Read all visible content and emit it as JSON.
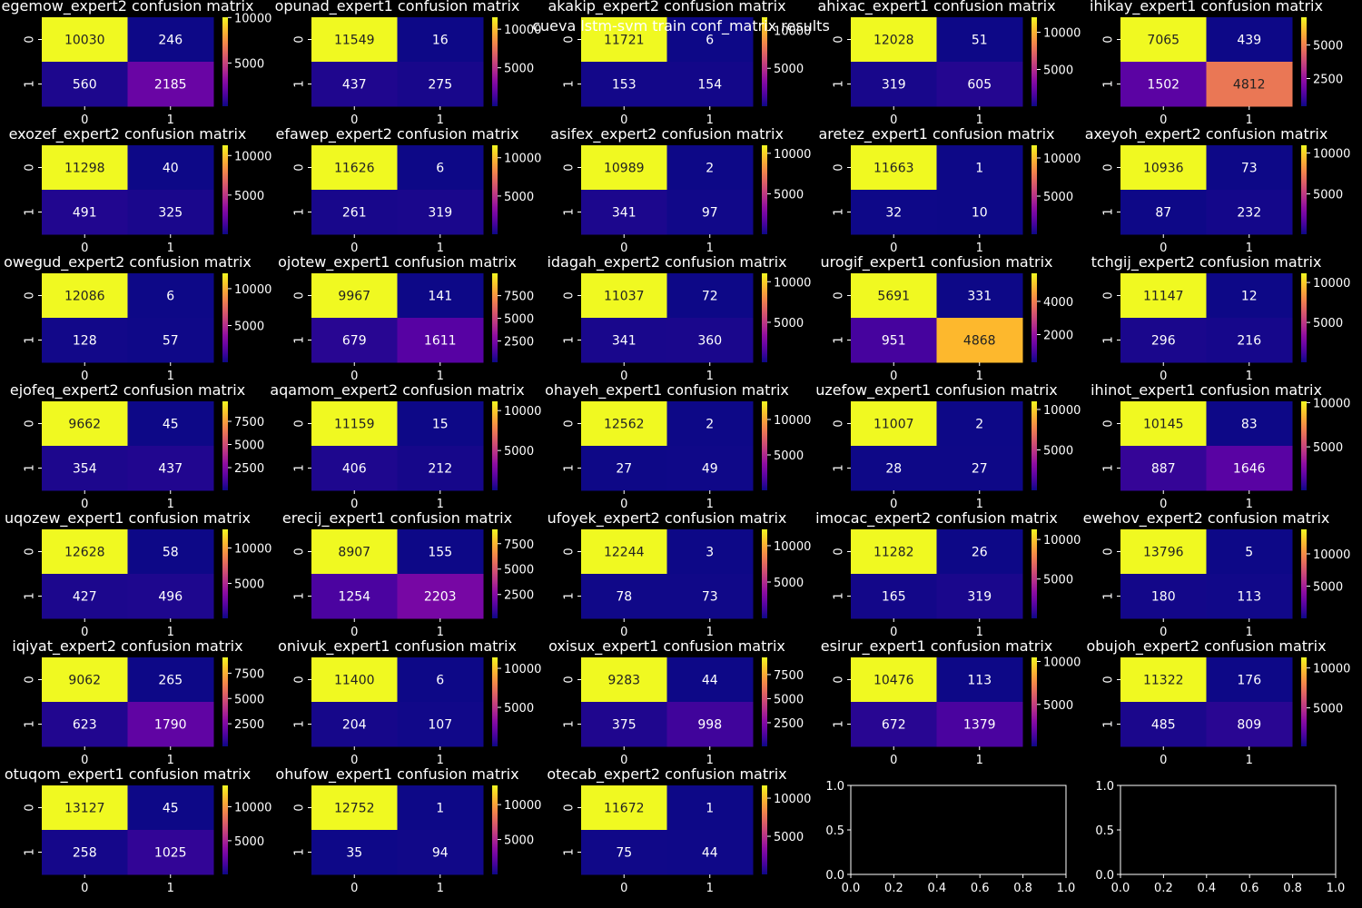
{
  "suptitle": "cueva lstm-svm train conf_matrix results",
  "chart_data": {
    "type": "heatmap",
    "colormap": "plasma",
    "xticks": [
      "0",
      "1"
    ],
    "yticks": [
      "0",
      "1"
    ],
    "panels": [
      {
        "title": "egemow_expert2 confusion matrix",
        "matrix": [
          [
            10030,
            246
          ],
          [
            560,
            2185
          ]
        ],
        "cbar_ticks": [
          5000,
          10000
        ]
      },
      {
        "title": "opunad_expert1 confusion matrix",
        "matrix": [
          [
            11549,
            16
          ],
          [
            437,
            275
          ]
        ],
        "cbar_ticks": [
          5000,
          10000
        ]
      },
      {
        "title": "akakip_expert2 confusion matrix",
        "matrix": [
          [
            11721,
            6
          ],
          [
            153,
            154
          ]
        ],
        "cbar_ticks": [
          5000,
          10000
        ]
      },
      {
        "title": "ahixac_expert1 confusion matrix",
        "matrix": [
          [
            12028,
            51
          ],
          [
            319,
            605
          ]
        ],
        "cbar_ticks": [
          5000,
          10000
        ]
      },
      {
        "title": "ihikay_expert1 confusion matrix",
        "matrix": [
          [
            7065,
            439
          ],
          [
            1502,
            4812
          ]
        ],
        "cbar_ticks": [
          2500,
          5000
        ]
      },
      {
        "title": "exozef_expert2 confusion matrix",
        "matrix": [
          [
            11298,
            40
          ],
          [
            491,
            325
          ]
        ],
        "cbar_ticks": [
          5000,
          10000
        ]
      },
      {
        "title": "efawep_expert2 confusion matrix",
        "matrix": [
          [
            11626,
            6
          ],
          [
            261,
            319
          ]
        ],
        "cbar_ticks": [
          5000,
          10000
        ]
      },
      {
        "title": "asifex_expert2 confusion matrix",
        "matrix": [
          [
            10989,
            2
          ],
          [
            341,
            97
          ]
        ],
        "cbar_ticks": [
          5000,
          10000
        ]
      },
      {
        "title": "aretez_expert1 confusion matrix",
        "matrix": [
          [
            11663,
            1
          ],
          [
            32,
            10
          ]
        ],
        "cbar_ticks": [
          5000,
          10000
        ]
      },
      {
        "title": "axeyoh_expert2 confusion matrix",
        "matrix": [
          [
            10936,
            73
          ],
          [
            87,
            232
          ]
        ],
        "cbar_ticks": [
          5000,
          10000
        ]
      },
      {
        "title": "owegud_expert2 confusion matrix",
        "matrix": [
          [
            12086,
            6
          ],
          [
            128,
            57
          ]
        ],
        "cbar_ticks": [
          5000,
          10000
        ]
      },
      {
        "title": "ojotew_expert1 confusion matrix",
        "matrix": [
          [
            9967,
            141
          ],
          [
            679,
            1611
          ]
        ],
        "cbar_ticks": [
          2500,
          5000,
          7500
        ]
      },
      {
        "title": "idagah_expert2 confusion matrix",
        "matrix": [
          [
            11037,
            72
          ],
          [
            341,
            360
          ]
        ],
        "cbar_ticks": [
          5000,
          10000
        ]
      },
      {
        "title": "urogif_expert1 confusion matrix",
        "matrix": [
          [
            5691,
            331
          ],
          [
            951,
            4868
          ]
        ],
        "cbar_ticks": [
          2000,
          4000
        ]
      },
      {
        "title": "tchgij_expert2 confusion matrix",
        "matrix": [
          [
            11147,
            12
          ],
          [
            296,
            216
          ]
        ],
        "cbar_ticks": [
          5000,
          10000
        ]
      },
      {
        "title": "ejofeq_expert2 confusion matrix",
        "matrix": [
          [
            9662,
            45
          ],
          [
            354,
            437
          ]
        ],
        "cbar_ticks": [
          2500,
          5000,
          7500
        ]
      },
      {
        "title": "aqamom_expert2 confusion matrix",
        "matrix": [
          [
            11159,
            15
          ],
          [
            406,
            212
          ]
        ],
        "cbar_ticks": [
          5000,
          10000
        ]
      },
      {
        "title": "ohayeh_expert1 confusion matrix",
        "matrix": [
          [
            12562,
            2
          ],
          [
            27,
            49
          ]
        ],
        "cbar_ticks": [
          5000,
          10000
        ]
      },
      {
        "title": "uzefow_expert1 confusion matrix",
        "matrix": [
          [
            11007,
            2
          ],
          [
            28,
            27
          ]
        ],
        "cbar_ticks": [
          5000,
          10000
        ]
      },
      {
        "title": "ihinot_expert1 confusion matrix",
        "matrix": [
          [
            10145,
            83
          ],
          [
            887,
            1646
          ]
        ],
        "cbar_ticks": [
          5000,
          10000
        ]
      },
      {
        "title": "uqozew_expert1 confusion matrix",
        "matrix": [
          [
            12628,
            58
          ],
          [
            427,
            496
          ]
        ],
        "cbar_ticks": [
          5000,
          10000
        ]
      },
      {
        "title": "erecij_expert1 confusion matrix",
        "matrix": [
          [
            8907,
            155
          ],
          [
            1254,
            2203
          ]
        ],
        "cbar_ticks": [
          2500,
          5000,
          7500
        ]
      },
      {
        "title": "ufoyek_expert2 confusion matrix",
        "matrix": [
          [
            12244,
            3
          ],
          [
            78,
            73
          ]
        ],
        "cbar_ticks": [
          5000,
          10000
        ]
      },
      {
        "title": "imocac_expert2 confusion matrix",
        "matrix": [
          [
            11282,
            26
          ],
          [
            165,
            319
          ]
        ],
        "cbar_ticks": [
          5000,
          10000
        ]
      },
      {
        "title": "ewehov_expert2 confusion matrix",
        "matrix": [
          [
            13796,
            5
          ],
          [
            180,
            113
          ]
        ],
        "cbar_ticks": [
          5000,
          10000
        ]
      },
      {
        "title": "iqiyat_expert2 confusion matrix",
        "matrix": [
          [
            9062,
            265
          ],
          [
            623,
            1790
          ]
        ],
        "cbar_ticks": [
          2500,
          5000,
          7500
        ]
      },
      {
        "title": "onivuk_expert1 confusion matrix",
        "matrix": [
          [
            11400,
            6
          ],
          [
            204,
            107
          ]
        ],
        "cbar_ticks": [
          5000,
          10000
        ]
      },
      {
        "title": "oxisux_expert1 confusion matrix",
        "matrix": [
          [
            9283,
            44
          ],
          [
            375,
            998
          ]
        ],
        "cbar_ticks": [
          2500,
          5000,
          7500
        ]
      },
      {
        "title": "esirur_expert1 confusion matrix",
        "matrix": [
          [
            10476,
            113
          ],
          [
            672,
            1379
          ]
        ],
        "cbar_ticks": [
          5000,
          10000
        ]
      },
      {
        "title": "obujoh_expert2 confusion matrix",
        "matrix": [
          [
            11322,
            176
          ],
          [
            485,
            809
          ]
        ],
        "cbar_ticks": [
          5000,
          10000
        ]
      },
      {
        "title": "otuqom_expert1 confusion matrix",
        "matrix": [
          [
            13127,
            45
          ],
          [
            258,
            1025
          ]
        ],
        "cbar_ticks": [
          5000,
          10000
        ]
      },
      {
        "title": "ohufow_expert1 confusion matrix",
        "matrix": [
          [
            12752,
            1
          ],
          [
            35,
            94
          ]
        ],
        "cbar_ticks": [
          5000,
          10000
        ]
      },
      {
        "title": "otecab_expert2 confusion matrix",
        "matrix": [
          [
            11672,
            1
          ],
          [
            75,
            44
          ]
        ],
        "cbar_ticks": [
          5000,
          10000
        ]
      }
    ],
    "empty_axes": [
      {
        "xlim": [
          0.0,
          1.0
        ],
        "ylim": [
          0.0,
          1.0
        ],
        "ticks": [
          "0.0",
          "0.2",
          "0.4",
          "0.6",
          "0.8",
          "1.0"
        ],
        "yticks": [
          "0.0",
          "0.5",
          "1.0"
        ]
      },
      {
        "xlim": [
          0.0,
          1.0
        ],
        "ylim": [
          0.0,
          1.0
        ],
        "ticks": [
          "0.0",
          "0.2",
          "0.4",
          "0.6",
          "0.8",
          "1.0"
        ],
        "yticks": [
          "0.0",
          "0.5",
          "1.0"
        ]
      }
    ]
  }
}
